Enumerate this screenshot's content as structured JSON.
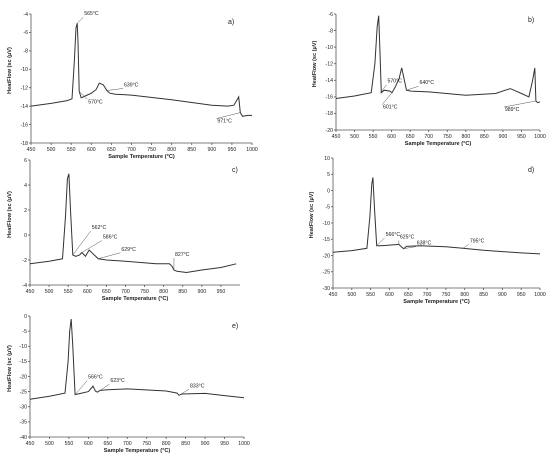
{
  "chart_data": [
    {
      "panel": "a)",
      "type": "line",
      "xlabel": "Sample Temperature (°C)",
      "ylabel": "HeatFlow (sc (µV)",
      "xlim": [
        450,
        1000
      ],
      "ylim": [
        -18,
        -4
      ],
      "xticks": [
        450,
        500,
        550,
        600,
        650,
        700,
        750,
        800,
        850,
        900,
        950,
        1000
      ],
      "yticks": [
        -4,
        -6,
        -8,
        -10,
        -12,
        -14,
        -16,
        -18
      ],
      "x": [
        450,
        500,
        540,
        552,
        558,
        562,
        565,
        567,
        570,
        575,
        585,
        600,
        612,
        620,
        630,
        639,
        646,
        660,
        700,
        800,
        900,
        940,
        955,
        963,
        967,
        971,
        976,
        990,
        1000
      ],
      "y": [
        -14.0,
        -13.7,
        -13.4,
        -13.2,
        -9.0,
        -5.5,
        -5.0,
        -7.0,
        -12.4,
        -13.1,
        -12.9,
        -12.6,
        -12.2,
        -11.5,
        -11.7,
        -12.3,
        -12.6,
        -12.7,
        -12.8,
        -13.3,
        -13.9,
        -14.0,
        -13.9,
        -13.3,
        -13.0,
        -14.7,
        -15.1,
        -15.0,
        -15.0
      ],
      "annotations": [
        {
          "text": "565°C",
          "x": 565,
          "y": -5.0
        },
        {
          "text": "570°C",
          "x": 570,
          "y": -12.4
        },
        {
          "text": "639°C",
          "x": 639,
          "y": -12.3
        },
        {
          "text": "971°C",
          "x": 971,
          "y": -14.7
        }
      ]
    },
    {
      "panel": "b)",
      "type": "line",
      "xlabel": "Sample Temperature (°C)",
      "ylabel": "HeatFlow (sc (µV)",
      "xlim": [
        450,
        1000
      ],
      "ylim": [
        -20,
        -6
      ],
      "xticks": [
        450,
        500,
        550,
        600,
        650,
        700,
        750,
        800,
        850,
        900,
        950,
        1000
      ],
      "yticks": [
        -6,
        -8,
        -10,
        -12,
        -14,
        -16,
        -18,
        -20
      ],
      "x": [
        450,
        500,
        545,
        555,
        561,
        565,
        568,
        572,
        580,
        595,
        601,
        610,
        620,
        627,
        632,
        640,
        652,
        700,
        800,
        880,
        920,
        950,
        970,
        980,
        986,
        989,
        994,
        1000
      ],
      "y": [
        -16.2,
        -15.9,
        -15.5,
        -12.0,
        -7.5,
        -6.2,
        -10.0,
        -15.5,
        -15.2,
        -15.3,
        -15.5,
        -14.8,
        -13.8,
        -12.5,
        -13.5,
        -15.2,
        -15.3,
        -15.4,
        -15.8,
        -15.6,
        -15.0,
        -15.6,
        -16.0,
        -14.0,
        -12.5,
        -16.5,
        -16.7,
        -16.6
      ],
      "annotations": [
        {
          "text": "570°C",
          "x": 570,
          "y": -15.5
        },
        {
          "text": "640°C",
          "x": 640,
          "y": -15.2
        },
        {
          "text": "601°C",
          "x": 601,
          "y": -15.5
        },
        {
          "text": "989°C",
          "x": 989,
          "y": -16.5
        }
      ]
    },
    {
      "panel": "c)",
      "type": "line",
      "xlabel": "Sample Temperature (°C)",
      "ylabel": "HeatFlow (sc (µV)",
      "xlim": [
        450,
        1000
      ],
      "ylim": [
        -4,
        6
      ],
      "xticks": [
        450,
        500,
        550,
        600,
        650,
        700,
        750,
        800,
        850,
        900,
        950
      ],
      "yticks": [
        6,
        4,
        2,
        0,
        -2,
        -4
      ],
      "x": [
        450,
        500,
        535,
        543,
        548,
        552,
        556,
        562,
        570,
        580,
        586,
        595,
        605,
        615,
        629,
        650,
        700,
        780,
        815,
        822,
        827,
        835,
        860,
        900,
        950,
        990
      ],
      "y": [
        -2.3,
        -2.1,
        -1.9,
        1.5,
        4.5,
        4.9,
        2.0,
        -1.6,
        -1.7,
        -1.6,
        -1.4,
        -1.7,
        -1.2,
        -1.5,
        -1.9,
        -2.0,
        -2.1,
        -2.3,
        -2.3,
        -2.5,
        -2.8,
        -2.9,
        -3.0,
        -2.8,
        -2.6,
        -2.3
      ],
      "annotations": [
        {
          "text": "562°C",
          "x": 562,
          "y": -1.6
        },
        {
          "text": "586°C",
          "x": 586,
          "y": -1.4
        },
        {
          "text": "629°C",
          "x": 629,
          "y": -1.9
        },
        {
          "text": "827°C",
          "x": 827,
          "y": -2.8
        }
      ]
    },
    {
      "panel": "d)",
      "type": "line",
      "xlabel": "Sample Temperature (°C)",
      "ylabel": "HeatFlow (sc (µV)",
      "xlim": [
        450,
        1000
      ],
      "ylim": [
        -30,
        10
      ],
      "xticks": [
        450,
        500,
        550,
        600,
        650,
        700,
        750,
        800,
        850,
        900,
        950,
        1000
      ],
      "yticks": [
        10,
        5,
        0,
        -5,
        -10,
        -15,
        -20,
        -25,
        -30
      ],
      "x": [
        450,
        500,
        540,
        548,
        553,
        556,
        560,
        566,
        575,
        600,
        625,
        632,
        638,
        645,
        680,
        750,
        795,
        850,
        900,
        950,
        1000
      ],
      "y": [
        -19.0,
        -18.5,
        -17.8,
        -8.0,
        2.0,
        4.0,
        -5.0,
        -17.0,
        -17.0,
        -16.8,
        -16.6,
        -17.4,
        -17.9,
        -17.2,
        -17.0,
        -17.3,
        -17.8,
        -18.4,
        -18.8,
        -19.2,
        -19.5
      ],
      "annotations": [
        {
          "text": "566°C",
          "x": 566,
          "y": -17.0
        },
        {
          "text": "625°C",
          "x": 625,
          "y": -16.6
        },
        {
          "text": "638°C",
          "x": 638,
          "y": -17.9
        },
        {
          "text": "795°C",
          "x": 795,
          "y": -17.8
        }
      ]
    },
    {
      "panel": "e)",
      "type": "line",
      "xlabel": "Sample Temperature (°C)",
      "ylabel": "HeatFlow (sc (µV)",
      "xlim": [
        450,
        1000
      ],
      "ylim": [
        -40,
        0
      ],
      "xticks": [
        450,
        500,
        550,
        600,
        650,
        700,
        750,
        800,
        850,
        900,
        950,
        1000
      ],
      "yticks": [
        0,
        -5,
        -10,
        -15,
        -20,
        -25,
        -30,
        -35,
        -40
      ],
      "x": [
        450,
        500,
        540,
        548,
        552,
        556,
        560,
        566,
        580,
        600,
        612,
        618,
        623,
        630,
        650,
        700,
        800,
        828,
        833,
        840,
        900,
        950,
        1000
      ],
      "y": [
        -27.5,
        -26.5,
        -25.5,
        -15.0,
        -5.0,
        -1.0,
        -10.0,
        -26.0,
        -25.6,
        -25.0,
        -23.2,
        -24.8,
        -25.2,
        -24.6,
        -24.4,
        -24.1,
        -24.8,
        -25.5,
        -26.2,
        -25.8,
        -25.6,
        -26.3,
        -27.0
      ],
      "annotations": [
        {
          "text": "566°C",
          "x": 566,
          "y": -26.0
        },
        {
          "text": "623°C",
          "x": 623,
          "y": -25.2
        },
        {
          "text": "833°C",
          "x": 833,
          "y": -26.2
        }
      ]
    }
  ]
}
